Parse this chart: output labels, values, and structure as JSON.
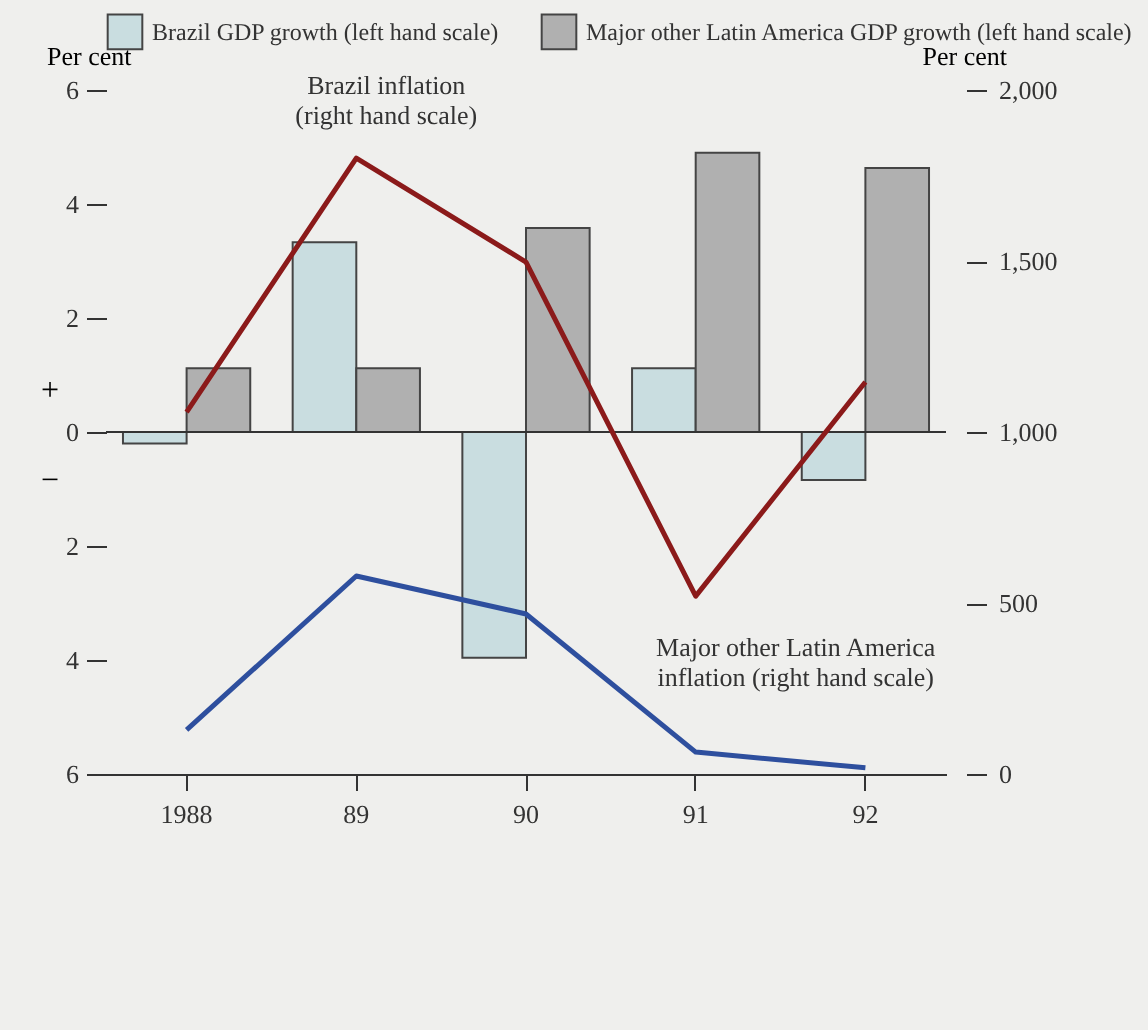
{
  "chart_data": {
    "type": "bar",
    "categories": [
      "1988",
      "89",
      "90",
      "91",
      "92"
    ],
    "ylabel": "Per cent",
    "y2label": "Per cent",
    "ylim": [
      -6,
      6
    ],
    "yticks": [
      {
        "value": -6,
        "label": "6"
      },
      {
        "value": -4,
        "label": "4"
      },
      {
        "value": -2,
        "label": "2"
      },
      0,
      2,
      4,
      6
    ],
    "y2lim": [
      0,
      2000
    ],
    "y2ticks": [
      0,
      500,
      {
        "value": 1000,
        "label": "1,000"
      },
      {
        "value": 1500,
        "label": "1,500"
      },
      {
        "value": 2000,
        "label": "2,000"
      }
    ],
    "series": [
      {
        "name": "Brazil GDP growth (left hand scale)",
        "color": "#c9dde0",
        "values": [
          -0.2,
          3.33,
          -3.96,
          1.12,
          -0.84
        ]
      },
      {
        "name": "Major other Latin America GDP growth (left hand scale)",
        "color": "#b0b0b0",
        "values": [
          1.12,
          1.12,
          3.58,
          4.9,
          4.63
        ]
      },
      {
        "name": "Brazil inflation (right hand scale)",
        "type": "line",
        "axis": "y2",
        "color": "#8b1a1a",
        "values": [
          1058,
          1801,
          1497,
          520,
          1146
        ]
      },
      {
        "name": "Major other Latin America inflation (right hand scale)",
        "type": "line",
        "axis": "y2",
        "color": "#2e4f9e",
        "values": [
          129,
          579,
          468,
          64,
          18
        ]
      }
    ],
    "annotations": [
      "+",
      "−"
    ],
    "ref_lines": [
      {
        "axis": "y",
        "value": 0
      }
    ],
    "legend": "top",
    "grid": false
  }
}
